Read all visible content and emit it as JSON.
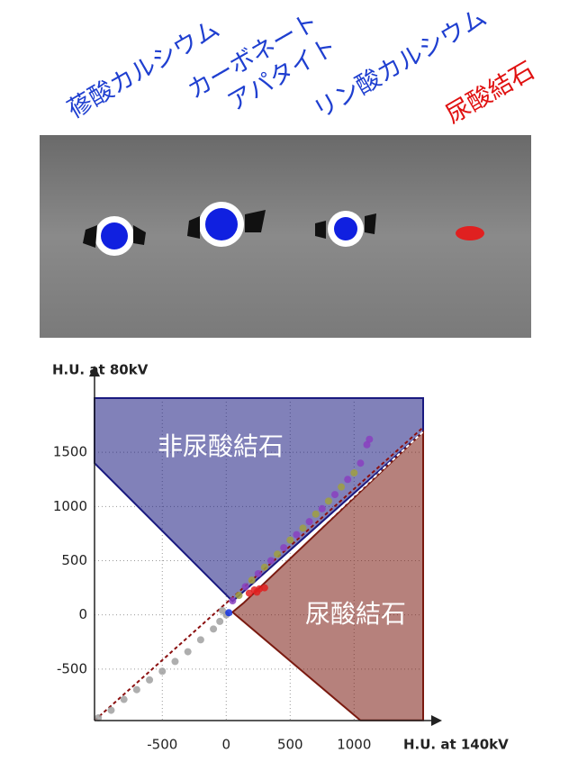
{
  "ct_labels": [
    {
      "lines": [
        "蓚酸カルシウム"
      ],
      "color": "#1f3fd0"
    },
    {
      "lines": [
        "カーボネート",
        "アパタイト"
      ],
      "color": "#1f3fd0"
    },
    {
      "lines": [
        "リン酸カルシウム"
      ],
      "color": "#1f3fd0"
    },
    {
      "lines": [
        "尿酸結石"
      ],
      "color": "#e01010"
    }
  ],
  "chart_data": {
    "type": "scatter",
    "y_label": "H.U. at 80kV",
    "x_label": "H.U. at 140kV",
    "xlim": [
      -1030,
      1540
    ],
    "ylim": [
      -975,
      2000
    ],
    "xticks": [
      -500,
      0,
      500,
      1000
    ],
    "yticks": [
      -500,
      0,
      500,
      1000,
      1500
    ],
    "grid": true,
    "regions": [
      {
        "name": "非尿酸結石",
        "color": "#1a1a80",
        "x": [
          -1030,
          -1030,
          1540,
          1540,
          50
        ],
        "y": [
          1400,
          2000,
          2000,
          1690,
          125
        ]
      },
      {
        "name": "尿酸結石",
        "color": "#7a1a10",
        "x": [
          134,
          1540,
          1540,
          1049,
          49
        ],
        "y": [
          108,
          1688,
          -973,
          -973,
          25
        ]
      }
    ],
    "lines": [
      {
        "color": "#ffffff",
        "x": [
          0,
          1540
        ],
        "y": [
          0,
          1690
        ]
      },
      {
        "color": "#8b1010",
        "x": [
          -1030,
          1540
        ],
        "y": [
          -975,
          1730
        ]
      }
    ],
    "series": [
      {
        "color": "#8a3fc0",
        "x": [
          50,
          150,
          250,
          350,
          450,
          550,
          650,
          750,
          850,
          950,
          1050,
          1100,
          1120
        ],
        "y": [
          130,
          260,
          380,
          500,
          620,
          740,
          860,
          980,
          1110,
          1250,
          1400,
          1570,
          1620
        ]
      },
      {
        "color": "#a0a040",
        "x": [
          100,
          200,
          300,
          400,
          500,
          600,
          700,
          800,
          900,
          1000
        ],
        "y": [
          180,
          320,
          440,
          560,
          690,
          800,
          930,
          1050,
          1180,
          1310
        ]
      },
      {
        "color": "#a0a0a0",
        "x": [
          -1000,
          -900,
          -800,
          -700,
          -600,
          -500,
          -400,
          -300,
          -200,
          -100,
          -50,
          0,
          -30
        ],
        "y": [
          -950,
          -880,
          -780,
          -690,
          -600,
          -520,
          -430,
          -340,
          -230,
          -130,
          -60,
          0,
          40
        ]
      },
      {
        "color": "#e02020",
        "x": [
          180,
          220,
          260,
          300,
          240
        ],
        "y": [
          200,
          230,
          240,
          250,
          210
        ]
      },
      {
        "color": "#1030e0",
        "x": [
          20
        ],
        "y": [
          20
        ]
      }
    ]
  }
}
